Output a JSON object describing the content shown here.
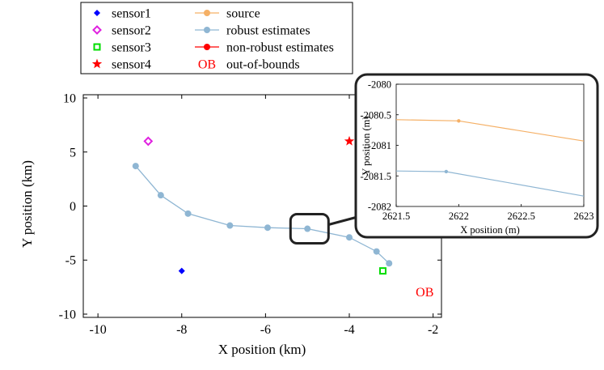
{
  "chart_data": [
    {
      "type": "line",
      "title": "",
      "xlabel": "X position (km)",
      "ylabel": "Y position (km)",
      "xlim": [
        -10.35,
        -1.8
      ],
      "ylim": [
        -10.3,
        10.3
      ],
      "xticks": [
        -10,
        -8,
        -6,
        -4,
        -2
      ],
      "yticks": [
        10,
        5,
        0,
        -5,
        -10
      ],
      "xtick_labels": [
        "-10",
        "-8",
        "-6",
        "-4",
        "-2"
      ],
      "ytick_labels": [
        "10",
        "5",
        "0",
        "-5",
        "-10"
      ],
      "grid": false,
      "legend": {
        "placement": "top-left-outside",
        "entries": [
          {
            "label": "sensor1",
            "marker": "diamond-filled",
            "color": "#0000ff"
          },
          {
            "label": "sensor2",
            "marker": "diamond-open",
            "color": "#e020e0"
          },
          {
            "label": "sensor3",
            "marker": "square-open",
            "color": "#00dd00"
          },
          {
            "label": "sensor4",
            "marker": "star",
            "color": "#ff0000"
          },
          {
            "label": "source",
            "marker": "circle-line",
            "color": "#f5b066"
          },
          {
            "label": "robust estimates",
            "marker": "circle-line",
            "color": "#8fb6d3"
          },
          {
            "label": "non-robust estimates",
            "marker": "circle-line",
            "color": "#ff0000"
          },
          {
            "label": "out-of-bounds",
            "symbol": "OB",
            "color": "#ff0000"
          }
        ]
      },
      "sensors": [
        {
          "name": "sensor1",
          "x": -8.0,
          "y": -6.0,
          "marker": "diamond-filled",
          "color": "#0000ff"
        },
        {
          "name": "sensor2",
          "x": -8.8,
          "y": 6.0,
          "marker": "diamond-open",
          "color": "#e020e0"
        },
        {
          "name": "sensor3",
          "x": -3.2,
          "y": -6.0,
          "marker": "square-open",
          "color": "#00dd00"
        },
        {
          "name": "sensor4",
          "x": -4.0,
          "y": 6.0,
          "marker": "star",
          "color": "#ff0000"
        }
      ],
      "series": [
        {
          "name": "robust estimates",
          "color": "#8fb6d3",
          "x": [
            -9.1,
            -8.5,
            -7.85,
            -6.85,
            -5.95,
            -5.0,
            -4.0,
            -3.35,
            -3.05
          ],
          "y": [
            3.7,
            1.0,
            -0.7,
            -1.8,
            -2.0,
            -2.1,
            -2.9,
            -4.2,
            -5.3
          ]
        }
      ],
      "annotations": [
        {
          "text": "OB",
          "color": "#ff0000",
          "x": -2.2,
          "y": -7.9
        }
      ],
      "zoom_region": {
        "x_center": -4.95,
        "y_center": -2.1
      }
    },
    {
      "type": "line",
      "title": "",
      "xlabel": "X position (m)",
      "ylabel": "Y position (m)",
      "xlim": [
        2621.5,
        2623
      ],
      "ylim": [
        -2082,
        -2080
      ],
      "xticks": [
        2621.5,
        2622,
        2622.5,
        2623
      ],
      "yticks": [
        -2080,
        -2080.5,
        -2081,
        -2081.5,
        -2082
      ],
      "xtick_labels": [
        "2621.5",
        "2622",
        "2622.5",
        "2623"
      ],
      "ytick_labels": [
        "-2080",
        "-2080.5",
        "-2081",
        "-2081.5",
        "-2082"
      ],
      "grid": false,
      "series": [
        {
          "name": "source",
          "color": "#f5b066",
          "x": [
            2621.5,
            2622.0,
            2623.0
          ],
          "y": [
            -2080.58,
            -2080.6,
            -2080.93
          ],
          "marker_index": 1
        },
        {
          "name": "robust estimates",
          "color": "#8fb6d3",
          "x": [
            2621.5,
            2621.9,
            2623.0
          ],
          "y": [
            -2081.42,
            -2081.43,
            -2081.83
          ],
          "marker_index": 1
        }
      ]
    }
  ]
}
